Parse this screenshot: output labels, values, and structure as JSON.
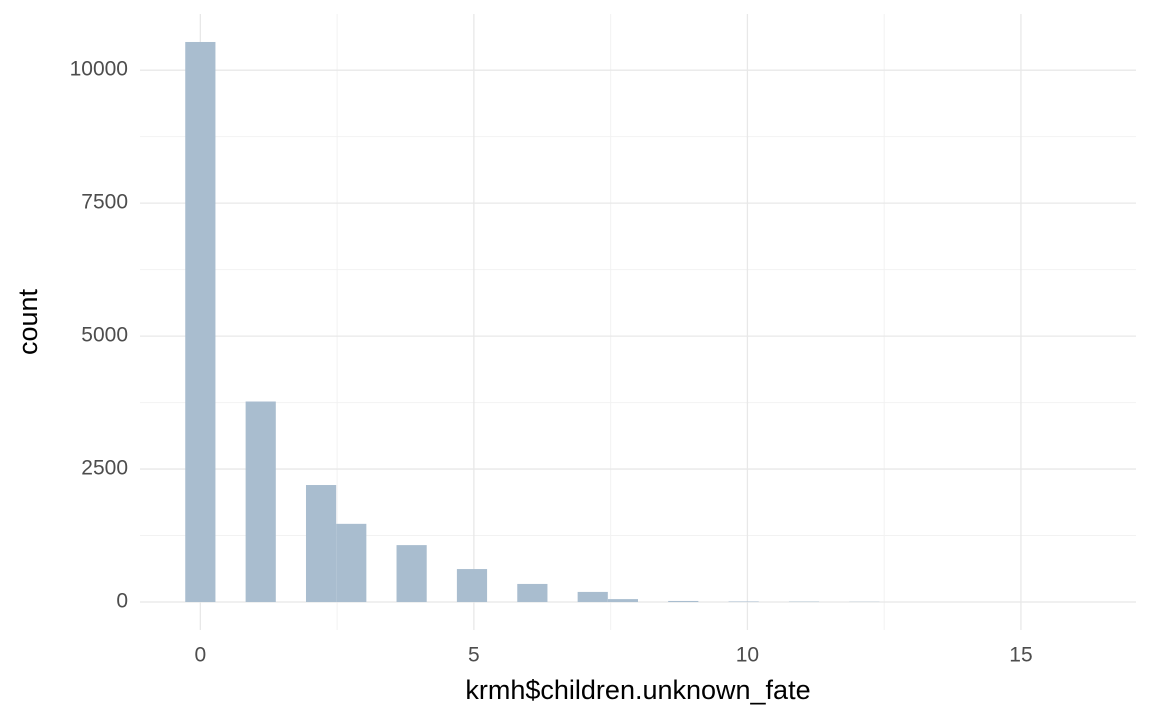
{
  "chart_data": {
    "type": "histogram",
    "x_label": "krmh$children.unknown_fate",
    "y_label": "count",
    "bins": [
      -0.2759,
      0.2759,
      0.8276,
      1.3793,
      1.931,
      2.4828,
      3.0345,
      3.5862,
      4.1379,
      4.6897,
      5.2414,
      5.7931,
      6.3448,
      6.8966,
      7.4483,
      8.0,
      8.5517,
      9.1034,
      9.6552,
      10.2069,
      10.7586,
      11.3103,
      11.8621,
      12.4138,
      12.9655,
      13.5172,
      14.069,
      14.6207,
      15.1724,
      15.7241,
      16.2759
    ],
    "values": [
      10530,
      0,
      3770,
      0,
      2200,
      1470,
      0,
      1070,
      0,
      620,
      0,
      340,
      0,
      190,
      55,
      0,
      20,
      0,
      10,
      0,
      8,
      0,
      5,
      0,
      0,
      0,
      0,
      0,
      0,
      0
    ],
    "color": "#a9bdcf",
    "xlim": [
      -1.103,
      17.103
    ],
    "ylim": [
      -526,
      11056
    ],
    "xticks": [
      0,
      5,
      10,
      15
    ],
    "yticks": [
      0,
      2500,
      5000,
      7500,
      10000
    ],
    "minor_xticks": [
      2.5,
      7.5,
      12.5
    ],
    "minor_yticks": [
      1250,
      3750,
      6250,
      8750
    ],
    "grid": true
  }
}
